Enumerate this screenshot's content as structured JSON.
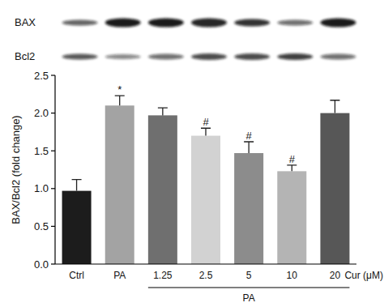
{
  "chart_data": {
    "type": "bar",
    "blot_labels": [
      "BAX",
      "Bcl2"
    ],
    "y_label": "BAX/Bcl2 (fold change)",
    "x_label": "Cur (μM)",
    "group_label": "PA",
    "categories": [
      "Ctrl",
      "PA",
      "1.25",
      "2.5",
      "5",
      "10",
      "20"
    ],
    "values": [
      0.97,
      2.1,
      1.97,
      1.7,
      1.47,
      1.23,
      2.0
    ],
    "errors": [
      0.15,
      0.13,
      0.1,
      0.1,
      0.15,
      0.08,
      0.17
    ],
    "significance": [
      null,
      "*",
      null,
      "#",
      "#",
      "#",
      null
    ],
    "colors": [
      "#1c1c1c",
      "#a3a3a3",
      "#6f6f6f",
      "#d2d2d2",
      "#8c8c8c",
      "#b4b4b4",
      "#575757"
    ],
    "ylim": [
      0,
      2.5
    ],
    "yticks": [
      {
        "value": 0,
        "label": "0.0"
      },
      0.5,
      {
        "value": 1,
        "label": "1.0"
      },
      1.5,
      {
        "value": 2,
        "label": "2.0"
      },
      2.5
    ],
    "grid": false
  }
}
